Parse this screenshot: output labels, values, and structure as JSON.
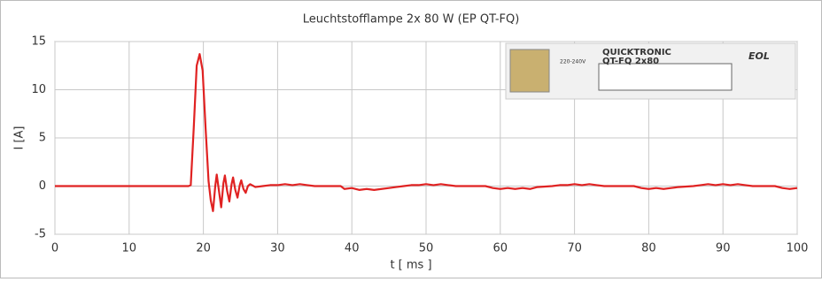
{
  "chart_data": {
    "type": "line",
    "title": "Leuchtstofflampe 2x 80 W (EP QT-FQ)",
    "x_label": "t [ ms ]",
    "y_label": "I [A]",
    "xlim": [
      0,
      100
    ],
    "xticks": [
      0,
      10,
      20,
      30,
      40,
      50,
      60,
      70,
      80,
      90,
      100
    ],
    "ylim": [
      -5,
      15
    ],
    "yticks": [
      -5,
      0,
      5,
      10,
      15
    ],
    "grid": true,
    "annotations": [
      "QUICKTRONIC",
      "QT-FQ 2x80",
      "220-240V",
      "EOL"
    ],
    "x": [
      0,
      18,
      18.3,
      18.7,
      19.1,
      19.5,
      19.9,
      20.3,
      20.7,
      21,
      21.3,
      21.6,
      21.8,
      22.1,
      22.4,
      22.7,
      22.9,
      23.2,
      23.5,
      23.8,
      24,
      24.3,
      24.6,
      24.9,
      25.1,
      25.4,
      25.7,
      26,
      26.3,
      27,
      28,
      29,
      30,
      31,
      32,
      33,
      34,
      35,
      38.5,
      39,
      40,
      41,
      42,
      43,
      44,
      45,
      46,
      47,
      48,
      49,
      50,
      51,
      52,
      53,
      54,
      58,
      59,
      60,
      61,
      62,
      63,
      64,
      65,
      67,
      68,
      69,
      70,
      71,
      72,
      73,
      74,
      78,
      79,
      80,
      81,
      82,
      83,
      84,
      86,
      87,
      88,
      89,
      90,
      91,
      92,
      93,
      94,
      97,
      98,
      99,
      100
    ],
    "series": [
      {
        "color": "#e02222",
        "values": [
          0,
          0,
          0.1,
          6,
          12.5,
          13.7,
          12,
          6,
          0.5,
          -1.5,
          -2.6,
          0,
          1.2,
          -0.5,
          -2.2,
          0.3,
          1.1,
          -0.5,
          -1.6,
          0.2,
          0.9,
          -0.4,
          -1.2,
          0.1,
          0.6,
          -0.3,
          -0.7,
          0,
          0.2,
          -0.1,
          0,
          0.1,
          0.1,
          0.2,
          0.1,
          0.2,
          0.1,
          0,
          0,
          -0.3,
          -0.2,
          -0.4,
          -0.3,
          -0.4,
          -0.3,
          -0.2,
          -0.1,
          0,
          0.1,
          0.1,
          0.2,
          0.1,
          0.2,
          0.1,
          0,
          0,
          -0.2,
          -0.3,
          -0.2,
          -0.3,
          -0.2,
          -0.3,
          -0.1,
          0,
          0.1,
          0.1,
          0.2,
          0.1,
          0.2,
          0.1,
          0,
          0,
          -0.2,
          -0.3,
          -0.2,
          -0.3,
          -0.2,
          -0.1,
          0,
          0.1,
          0.2,
          0.1,
          0.2,
          0.1,
          0.2,
          0.1,
          0,
          0,
          -0.2,
          -0.3,
          -0.2
        ]
      }
    ]
  }
}
